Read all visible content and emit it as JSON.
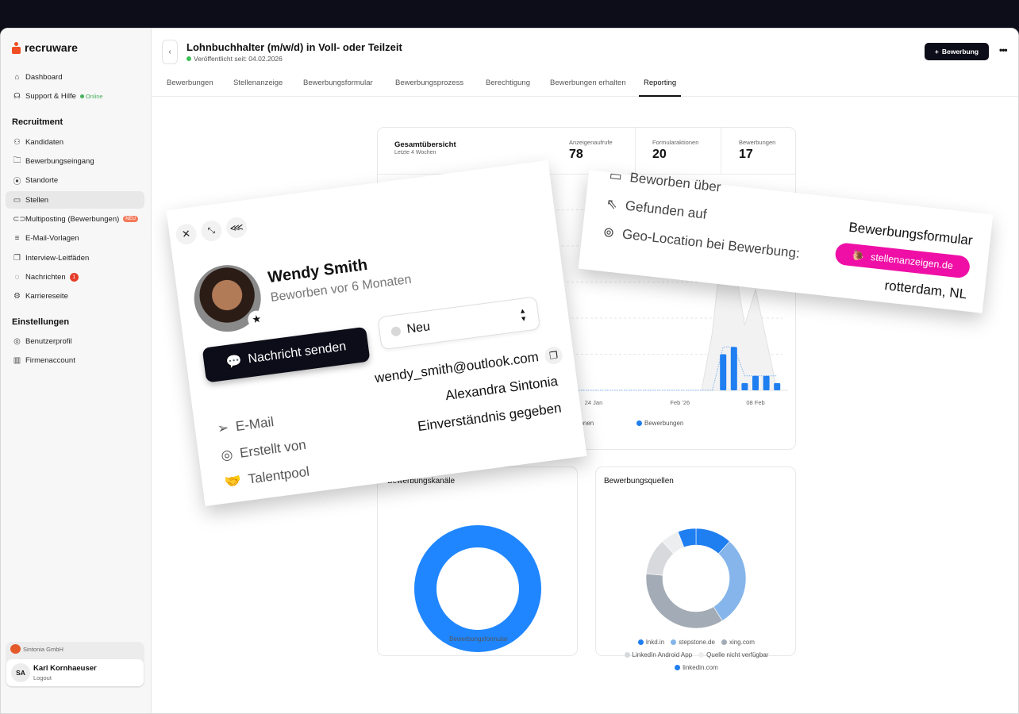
{
  "app": {
    "logo": "recruware"
  },
  "sidebar": {
    "top": [
      {
        "label": "Dashboard",
        "icon": "home-icon"
      },
      {
        "label": "Support & Hilfe",
        "icon": "headset-icon",
        "status": "Online"
      }
    ],
    "recruitment_heading": "Recruitment",
    "recruitment": [
      {
        "label": "Kandidaten"
      },
      {
        "label": "Bewerbungseingang"
      },
      {
        "label": "Standorte"
      },
      {
        "label": "Stellen",
        "active": true
      },
      {
        "label": "Multiposting (Bewerbungen)",
        "badge": "NEU"
      },
      {
        "label": "E-Mail-Vorlagen"
      },
      {
        "label": "Interview-Leitfäden"
      },
      {
        "label": "Nachrichten",
        "count": "1"
      },
      {
        "label": "Karriereseite"
      }
    ],
    "settings_heading": "Einstellungen",
    "settings": [
      {
        "label": "Benutzerprofil"
      },
      {
        "label": "Firmenaccount"
      }
    ],
    "org": "Sintonia GmbH",
    "user": {
      "initials": "SA",
      "name": "Karl Kornhaeuser",
      "logout": "Logout"
    }
  },
  "header": {
    "title": "Lohnbuchhalter (m/w/d) in Voll- oder Teilzeit",
    "published": "Veröffentlicht seit: 04.02.2026",
    "add_button": "Bewerbung",
    "more": "•••"
  },
  "tabs": [
    {
      "label": "Bewerbungen"
    },
    {
      "label": "Stellenanzeige"
    },
    {
      "label": "Bewerbungsformular"
    },
    {
      "label": "Bewerbungsprozess"
    },
    {
      "label": "Berechtigung"
    },
    {
      "label": "Bewerbungen erhalten"
    },
    {
      "label": "Reporting",
      "active": true
    }
  ],
  "overview": {
    "title": "Gesamtübersicht",
    "subtitle": "Letzte 4 Wochen",
    "stats": [
      {
        "label": "Anzeigenaufrufe",
        "value": "78"
      },
      {
        "label": "Formularaktionen",
        "value": "20"
      },
      {
        "label": "Bewerbungen",
        "value": "17"
      }
    ]
  },
  "chart_data": [
    {
      "type": "bar",
      "x_ticks": [
        "24 Jan",
        "Feb '26",
        "08 Feb"
      ],
      "grid": true,
      "legend_placement": "bottom",
      "x": [
        "2026-02-04",
        "2026-02-05",
        "2026-02-06",
        "2026-02-07",
        "2026-02-08",
        "2026-02-09",
        "2026-02-10"
      ],
      "series": [
        {
          "type": "area",
          "values": [
            8,
            22,
            18,
            9,
            14,
            7,
            0
          ],
          "color": "#e2e2e2"
        },
        {
          "name": "Formularaktionen",
          "type": "line",
          "values": [
            0,
            6,
            6,
            2,
            2,
            2,
            2
          ],
          "color": "#7fb2f0"
        },
        {
          "name": "Bewerbungen",
          "type": "bar",
          "values": [
            0,
            5,
            6,
            1,
            2,
            2,
            1
          ],
          "color": "#1f7ef0"
        }
      ],
      "ylim": [
        0,
        25
      ]
    },
    {
      "type": "pie",
      "title": "Bewerbungskanäle",
      "categories": [
        "Bewerbungsformular"
      ],
      "values": [
        17
      ],
      "colors": [
        "#1f86ff"
      ]
    },
    {
      "type": "pie",
      "title": "Bewerbungsquellen",
      "categories": [
        "lnkd.in",
        "stepstone.de",
        "xing.com",
        "LinkedIn Android App",
        "Quelle nicht verfügbar",
        "linkedin.com"
      ],
      "values": [
        2,
        5,
        6,
        2,
        1,
        1
      ],
      "colors": [
        "#1f7ef0",
        "#85b5ea",
        "#a3acb6",
        "#d7d9dc",
        "#eceef0",
        "#1f7ef0"
      ]
    }
  ],
  "candidate": {
    "name": "Wendy Smith",
    "applied": "Beworben vor 6 Monaten",
    "message_button": "Nachricht senden",
    "status": "Neu",
    "fields": [
      {
        "label": "E-Mail",
        "value": "wendy_smith@outlook.com"
      },
      {
        "label": "Erstellt von",
        "value": "Alexandra Sintonia"
      },
      {
        "label": "Talentpool",
        "value": "Einverständnis gegeben"
      }
    ]
  },
  "source": {
    "rows": [
      {
        "label": "Beworben über",
        "value": "Bewerbungsformular"
      },
      {
        "label": "Gefunden auf",
        "value": "stellenanzeigen.de",
        "pill_color": "#ef0fa6"
      },
      {
        "label": "Geo-Location bei Bewerbung:",
        "value": "rotterdam, NL"
      }
    ]
  }
}
